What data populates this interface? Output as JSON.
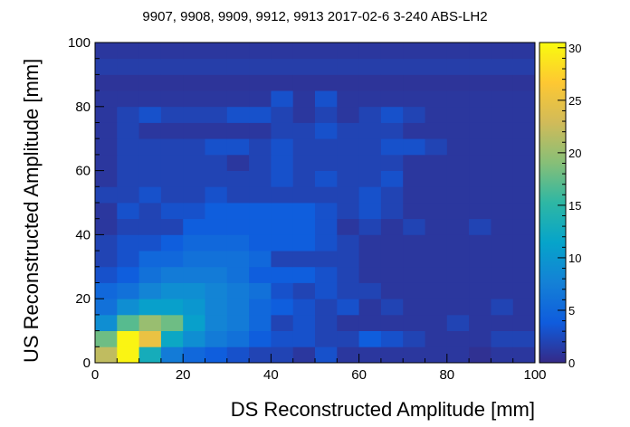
{
  "chart_data": {
    "type": "heatmap",
    "title": "9907, 9908, 9909, 9912, 9913 2017-02-6 3-240 ABS-LH2",
    "xlabel": "DS Reconstructed Amplitude [mm]",
    "ylabel": "US Reconstructed Amplitude [mm]",
    "xlim": [
      0,
      100
    ],
    "ylim": [
      0,
      100
    ],
    "x_ticks": [
      "0",
      "20",
      "40",
      "60",
      "80",
      "100"
    ],
    "y_ticks": [
      "0",
      "20",
      "40",
      "60",
      "80",
      "100"
    ],
    "colorbar_ticks": [
      "0",
      "5",
      "10",
      "15",
      "20",
      "25",
      "30"
    ],
    "zlim": [
      0,
      30.5
    ],
    "bin_width": 5,
    "grid": false,
    "colormap": "parula",
    "colormap_stops": [
      "#352a87",
      "#0f5cdd",
      "#1481d6",
      "#06a4ca",
      "#2eb7a4",
      "#87bf77",
      "#d1bb59",
      "#fec832",
      "#f9fb0e"
    ],
    "x_bin_starts": [
      0,
      5,
      10,
      15,
      20,
      25,
      30,
      35,
      40,
      45,
      50,
      55,
      60,
      65,
      70,
      75,
      80,
      85,
      90,
      95
    ],
    "y_bin_starts": [
      0,
      5,
      10,
      15,
      20,
      25,
      30,
      35,
      40,
      45,
      50,
      55,
      60,
      65,
      70,
      75,
      80,
      85,
      90,
      95
    ],
    "z_rows_from_y0": [
      [
        22,
        30,
        13,
        7,
        5,
        4,
        3,
        2,
        2,
        1,
        3,
        1,
        1,
        1,
        1,
        1,
        1,
        0.5,
        1,
        1
      ],
      [
        18,
        30,
        25,
        12,
        9,
        7,
        6,
        4,
        3,
        3,
        2,
        2,
        4,
        3,
        2,
        1,
        1,
        1,
        2,
        2
      ],
      [
        9,
        17,
        20,
        18,
        11,
        8,
        7,
        5,
        2,
        3,
        2,
        1,
        1,
        1,
        1,
        1,
        2,
        1,
        1,
        1
      ],
      [
        6,
        9,
        11,
        11,
        10,
        8,
        7,
        5,
        4,
        3,
        2,
        3,
        1,
        2,
        1,
        1,
        1,
        1,
        2,
        1
      ],
      [
        5,
        6,
        8,
        9,
        9,
        8,
        7,
        6,
        3,
        2,
        3,
        2,
        2,
        1,
        1,
        1,
        1,
        1,
        1,
        1
      ],
      [
        3,
        4,
        6,
        7,
        7,
        7,
        6,
        4,
        4,
        4,
        3,
        2,
        1,
        1,
        1,
        1,
        1,
        1,
        1,
        1
      ],
      [
        2,
        3,
        5,
        5,
        6,
        6,
        6,
        5,
        2,
        2,
        2,
        2,
        1,
        1,
        1,
        1,
        1,
        1,
        1,
        1
      ],
      [
        2,
        3,
        3,
        4,
        5,
        5,
        5,
        4,
        4,
        4,
        3,
        2,
        1,
        1,
        1,
        1,
        1,
        1,
        1,
        1
      ],
      [
        1,
        2,
        2,
        2,
        4,
        4,
        4,
        4,
        4,
        4,
        3,
        1,
        2,
        1,
        2,
        1,
        1,
        2,
        1,
        1
      ],
      [
        1,
        3,
        2,
        3,
        3,
        4,
        4,
        4,
        4,
        4,
        3,
        2,
        3,
        2,
        1,
        1,
        1,
        1,
        1,
        1
      ],
      [
        2,
        2,
        3,
        2,
        2,
        3,
        2,
        2,
        2,
        2,
        2,
        2,
        3,
        2,
        1,
        1,
        1,
        1,
        1,
        1
      ],
      [
        1,
        2,
        2,
        2,
        2,
        2,
        2,
        2,
        3,
        2,
        3,
        2,
        2,
        3,
        1,
        1,
        1,
        1,
        1,
        1
      ],
      [
        1,
        2,
        2,
        2,
        2,
        2,
        1,
        2,
        3,
        2,
        2,
        2,
        2,
        2,
        1,
        1,
        1,
        1,
        1,
        1
      ],
      [
        1,
        2,
        2,
        2,
        2,
        3,
        3,
        2,
        3,
        2,
        2,
        2,
        2,
        3,
        3,
        2,
        1,
        1,
        1,
        1
      ],
      [
        1,
        2,
        1,
        1,
        1,
        1,
        1,
        1,
        2,
        2,
        3,
        2,
        2,
        2,
        1,
        1,
        1,
        1,
        1,
        1
      ],
      [
        1,
        2,
        3,
        2,
        2,
        2,
        3,
        3,
        2,
        1,
        2,
        1,
        2,
        3,
        2,
        1,
        1,
        1,
        1,
        1
      ],
      [
        1,
        1,
        1,
        1,
        1,
        1,
        1,
        1,
        3,
        1,
        3,
        1,
        1,
        1,
        1,
        1,
        1,
        1,
        1,
        1
      ],
      [
        0.8,
        0.8,
        0.8,
        0.8,
        0.8,
        0.8,
        0.8,
        0.8,
        0.8,
        0.8,
        0.8,
        0.8,
        0.8,
        0.8,
        0.8,
        0.8,
        0.8,
        0.8,
        0.8,
        0.8
      ],
      [
        1.5,
        1.5,
        1.5,
        1.5,
        1.5,
        1.5,
        1.5,
        1.5,
        1.5,
        1.5,
        1.5,
        1.5,
        1.5,
        1.5,
        1.5,
        1.5,
        1.5,
        1.5,
        1.5,
        1.5
      ],
      [
        1,
        1,
        1,
        1,
        1,
        1,
        1,
        1,
        1,
        1,
        1,
        1,
        1,
        1,
        1,
        1,
        1,
        1,
        1,
        1
      ]
    ]
  }
}
